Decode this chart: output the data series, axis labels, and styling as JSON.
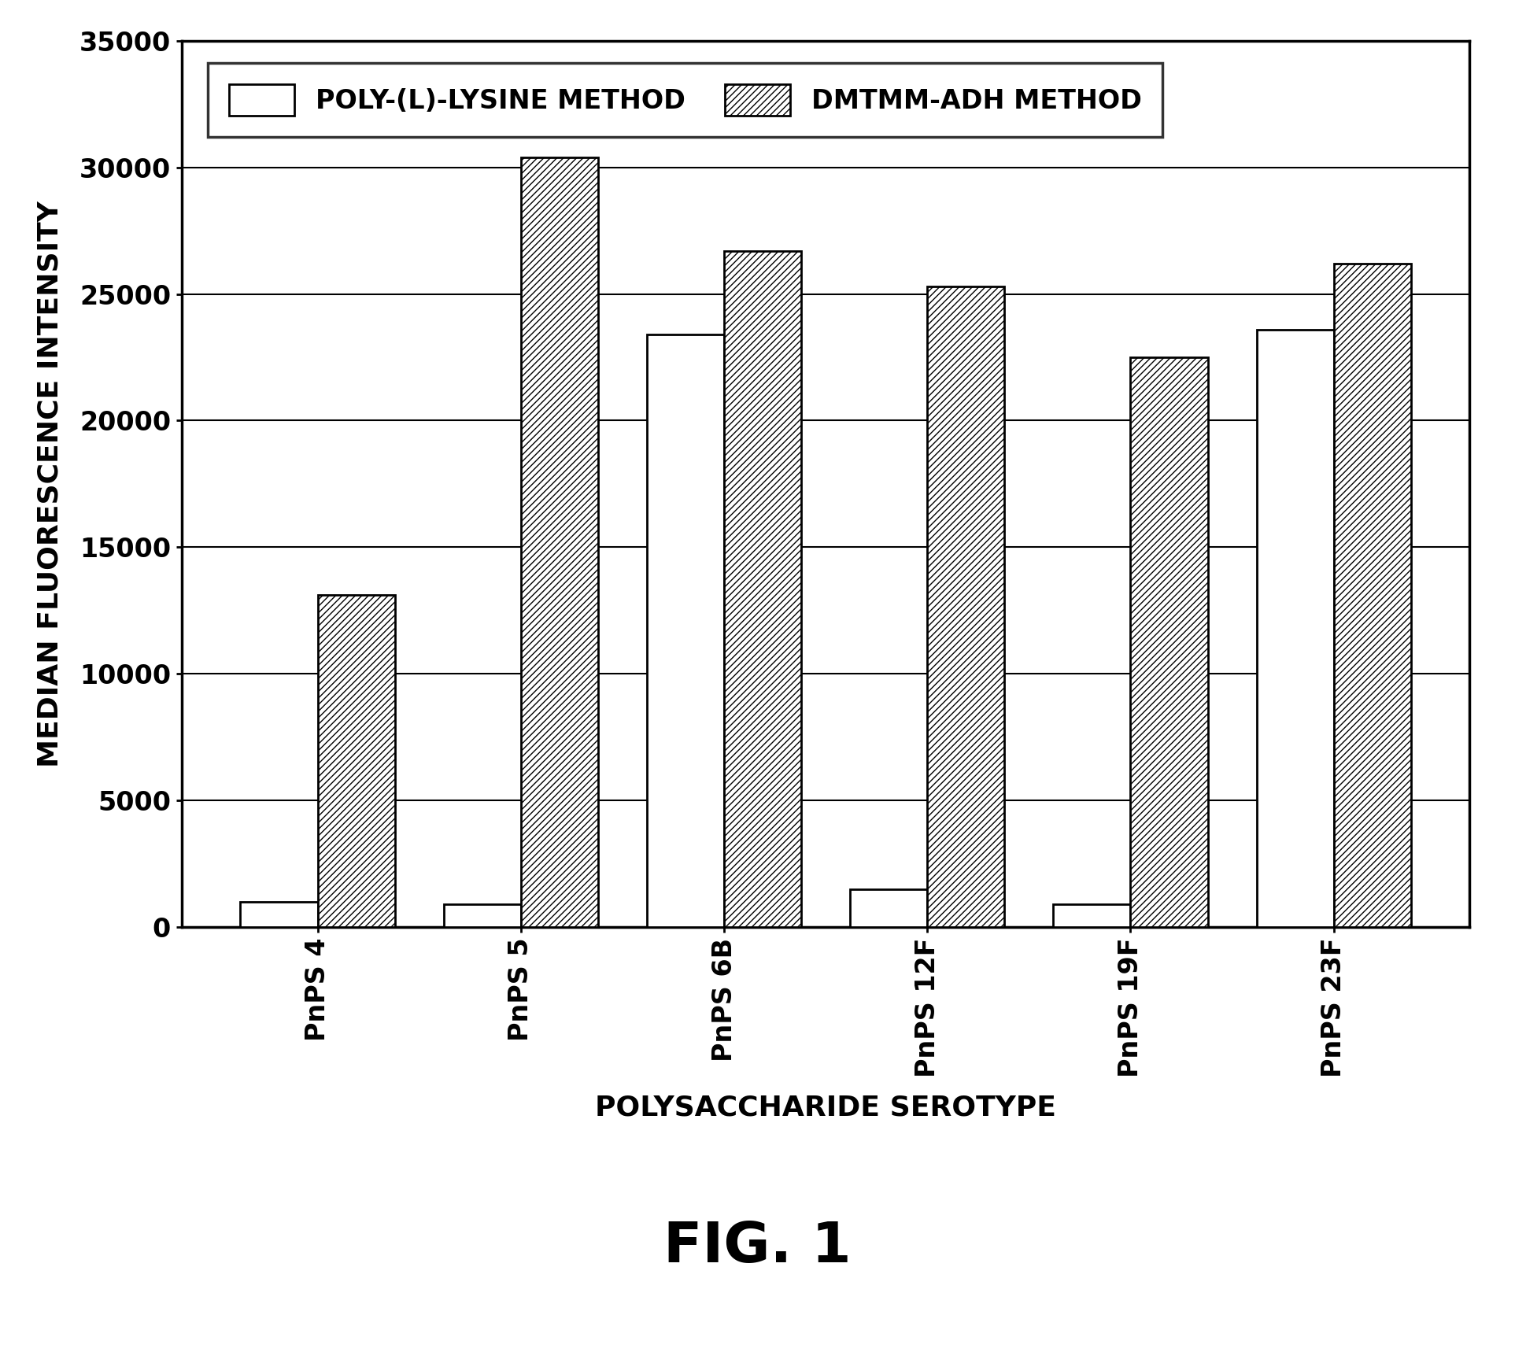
{
  "categories": [
    "PnPS 4",
    "PnPS 5",
    "PnPS 6B",
    "PnPS 12F",
    "PnPS 19F",
    "PnPS 23F"
  ],
  "poly_lysine_values": [
    1000,
    900,
    23400,
    1500,
    900,
    23600
  ],
  "dmtmm_adh_values": [
    13100,
    30400,
    26700,
    25300,
    22500,
    26200
  ],
  "bar_color_poly": "#ffffff",
  "bar_color_dmtmm": "#ffffff",
  "bar_edgecolor": "#000000",
  "hatch_poly": "",
  "hatch_dmtmm": "////",
  "title": "FIG. 1",
  "xlabel": "POLYSACCHARIDE SEROTYPE",
  "ylabel": "MEDIAN FLUORESCENCE INTENSITY",
  "ylim": [
    0,
    35000
  ],
  "yticks": [
    0,
    5000,
    10000,
    15000,
    20000,
    25000,
    30000,
    35000
  ],
  "legend_labels": [
    "POLY-(L)-LYSINE METHOD",
    "DMTMM-ADH METHOD"
  ],
  "bar_width": 0.38,
  "background_color": "#ffffff",
  "grid_color": "#000000",
  "title_fontsize": 52,
  "axis_label_fontsize": 26,
  "tick_fontsize": 24,
  "legend_fontsize": 24
}
